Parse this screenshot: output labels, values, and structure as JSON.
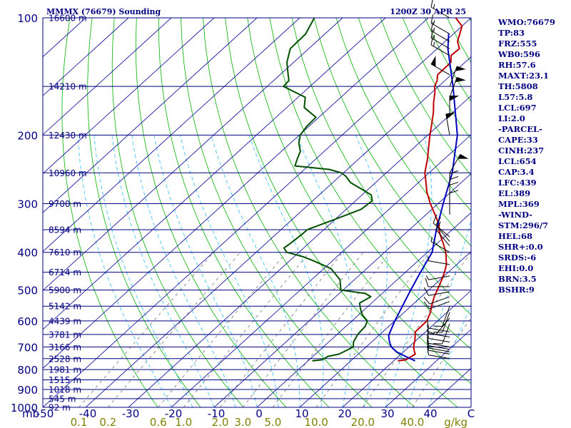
{
  "header": {
    "title": "MMMX (76679) Sounding",
    "time": "1200Z 30 APR 25"
  },
  "colors": {
    "axis": "#000080",
    "dry_adiabat": "#00b000",
    "moist_adiabat": "#40c0ff",
    "mixing_ratio": "#808080",
    "temperature": "#c00000",
    "dewpoint": "#005000",
    "parcel": "#0000c0",
    "mixing_ratio_labels": "#808000"
  },
  "indices": [
    "WMO:76679",
    "TP:83",
    "FRZ:555",
    "WB0:596",
    "RH:57.6",
    "MAXT:23.1",
    "TH:5808",
    "L57:5.8",
    "LCL:697",
    "LI:2.0",
    "-PARCEL-",
    "CAPE:33",
    "CINH:237",
    "LCL:654",
    "CAP:3.4",
    "LFC:439",
    "EL:389",
    "MPL:369",
    "-WIND-",
    "STM:296/7",
    "HEL:68",
    "SHR+:0.0",
    "SRDS:-6",
    "EHI:0.0",
    "BRN:3.5",
    "BSHR:9"
  ],
  "chart_data": {
    "type": "skew-t log-p sounding",
    "x_unit": "C",
    "y_unit": "mb",
    "xlim": [
      -50,
      50
    ],
    "ylim": [
      1000,
      100
    ],
    "isobars": [
      100,
      200,
      300,
      400,
      500,
      600,
      700,
      800,
      900,
      1000
    ],
    "isobar_labels": [
      "100",
      "200",
      "300",
      "400",
      "500",
      "600",
      "700",
      "800",
      "900",
      "1000"
    ],
    "pressure_axis_label": "mb",
    "temperature_ticks": [
      -50,
      -40,
      -30,
      -20,
      -10,
      0,
      10,
      20,
      30,
      40
    ],
    "temperature_tick_labels": [
      "-50",
      "-40",
      "-30",
      "-20",
      "-10",
      "0",
      "10",
      "20",
      "30",
      "40"
    ],
    "temperature_axis_label": "C",
    "height_levels": [
      {
        "p": 100,
        "label": "16600 m"
      },
      {
        "p": 150,
        "label": "14210 m"
      },
      {
        "p": 200,
        "label": "12430 m"
      },
      {
        "p": 250,
        "label": "10960 m"
      },
      {
        "p": 300,
        "label": "9700 m"
      },
      {
        "p": 350,
        "label": "8594 m"
      },
      {
        "p": 400,
        "label": "7610 m"
      },
      {
        "p": 450,
        "label": "6714 m"
      },
      {
        "p": 500,
        "label": "5900 m"
      },
      {
        "p": 550,
        "label": "5142 m"
      },
      {
        "p": 600,
        "label": "4439 m"
      },
      {
        "p": 650,
        "label": "3781 m"
      },
      {
        "p": 700,
        "label": "3166 m"
      },
      {
        "p": 750,
        "label": "2528 m"
      },
      {
        "p": 800,
        "label": "1981 m"
      },
      {
        "p": 850,
        "label": "1515 m"
      },
      {
        "p": 900,
        "label": "1018 m"
      },
      {
        "p": 950,
        "label": "545 m"
      },
      {
        "p": 1000,
        "label": "92 m"
      }
    ],
    "mixing_ratio_lines": [
      0.1,
      0.2,
      0.6,
      1.0,
      2.0,
      3.0,
      5.0,
      10.0,
      20.0,
      40.0
    ],
    "mixing_ratio_labels": [
      "0.1",
      "0.2",
      "0.6",
      "1.0",
      "2.0",
      "3.0",
      "5.0",
      "10.0",
      "20.0",
      "40.0"
    ],
    "mixing_ratio_unit": "g/kg",
    "temperature": {
      "p": [
        760,
        755,
        740,
        730,
        720,
        700,
        670,
        640,
        600,
        570,
        550,
        520,
        500,
        470,
        450,
        430,
        400,
        380,
        360,
        350,
        340,
        320,
        300,
        280,
        260,
        250,
        230,
        210,
        200,
        185,
        175,
        165,
        155,
        150,
        145,
        140,
        130,
        125,
        120,
        115,
        110,
        105,
        100
      ],
      "t": [
        21,
        22.6,
        23,
        23.3,
        22.5,
        21.1,
        19.5,
        17.6,
        17.5,
        16.1,
        14.8,
        13,
        12,
        10.4,
        9.1,
        7.6,
        4.3,
        1.5,
        -1.6,
        -3.1,
        -4.3,
        -7.9,
        -11.8,
        -15.6,
        -19.1,
        -21,
        -24,
        -27.6,
        -29.5,
        -32.4,
        -34.5,
        -37,
        -39.4,
        -40.9,
        -41.8,
        -43.2,
        -43.3,
        -45,
        -44.8,
        -47.1,
        -48.5,
        -50,
        -53.6
      ]
    },
    "dewpoint": {
      "p": [
        760,
        755,
        740,
        730,
        720,
        700,
        680,
        650,
        620,
        600,
        580,
        560,
        540,
        520,
        510,
        500,
        470,
        440,
        420,
        410,
        400,
        390,
        380,
        370,
        360,
        350,
        330,
        310,
        295,
        285,
        275,
        265,
        255,
        250,
        245,
        240,
        230,
        220,
        210,
        200,
        190,
        180,
        170,
        160,
        150,
        145,
        140,
        130,
        120,
        110,
        100
      ],
      "td": [
        1,
        3,
        3.5,
        5.5,
        6,
        7,
        5.8,
        4.8,
        4.5,
        3.6,
        1,
        -1,
        -2.8,
        -1.8,
        -4,
        -10.5,
        -13.4,
        -18.4,
        -24.6,
        -28.1,
        -32.8,
        -34.6,
        -34.3,
        -34.1,
        -33.9,
        -33.9,
        -30.2,
        -26.5,
        -26.1,
        -27.8,
        -31.7,
        -35.8,
        -38.6,
        -40.5,
        -44.2,
        -53.1,
        -54.4,
        -55.6,
        -58,
        -59.8,
        -60.5,
        -60.7,
        -65.9,
        -68.3,
        -76.2,
        -76.4,
        -78.1,
        -81.6,
        -84.3,
        -84.5,
        -86.6
      ]
    },
    "parcel": {
      "p": [
        760,
        740,
        720,
        700,
        680,
        654,
        600,
        550,
        500,
        450,
        400,
        350,
        300,
        250,
        200,
        150,
        120,
        110
      ],
      "t": [
        25,
        21.6,
        18.3,
        15.9,
        14.2,
        12.3,
        10,
        8,
        5.8,
        3.5,
        1.1,
        -3.7,
        -8.8,
        -14.6,
        -23.1,
        -36.6,
        -47.5,
        -51.1
      ]
    },
    "wind_barbs": [
      {
        "p": 750,
        "dir": 280,
        "spd": 10
      },
      {
        "p": 730,
        "dir": 280,
        "spd": 10
      },
      {
        "p": 720,
        "dir": 280,
        "spd": 10
      },
      {
        "p": 710,
        "dir": 280,
        "spd": 10
      },
      {
        "p": 700,
        "dir": 280,
        "spd": 10
      },
      {
        "p": 680,
        "dir": 280,
        "spd": 10
      },
      {
        "p": 660,
        "dir": 280,
        "spd": 10
      },
      {
        "p": 640,
        "dir": 280,
        "spd": 10
      },
      {
        "p": 610,
        "dir": 200,
        "spd": 10
      },
      {
        "p": 590,
        "dir": 220,
        "spd": 10
      },
      {
        "p": 570,
        "dir": 200,
        "spd": 10
      },
      {
        "p": 550,
        "dir": 200,
        "spd": 10
      },
      {
        "p": 535,
        "dir": 250,
        "spd": 10
      },
      {
        "p": 520,
        "dir": 250,
        "spd": 10
      },
      {
        "p": 505,
        "dir": 260,
        "spd": 10
      },
      {
        "p": 490,
        "dir": 270,
        "spd": 10
      },
      {
        "p": 460,
        "dir": 260,
        "spd": 5
      },
      {
        "p": 430,
        "dir": 280,
        "spd": 5
      },
      {
        "p": 400,
        "dir": 300,
        "spd": 5
      },
      {
        "p": 385,
        "dir": 320,
        "spd": 10
      },
      {
        "p": 375,
        "dir": 320,
        "spd": 10
      },
      {
        "p": 365,
        "dir": 310,
        "spd": 10
      },
      {
        "p": 320,
        "dir": 360,
        "spd": 10
      },
      {
        "p": 305,
        "dir": 360,
        "spd": 10
      },
      {
        "p": 295,
        "dir": 360,
        "spd": 10
      },
      {
        "p": 285,
        "dir": 360,
        "spd": 10
      },
      {
        "p": 250,
        "dir": 30,
        "spd": 50
      },
      {
        "p": 200,
        "dir": 350,
        "spd": 50
      },
      {
        "p": 180,
        "dir": 360,
        "spd": 50
      },
      {
        "p": 160,
        "dir": 20,
        "spd": 50
      },
      {
        "p": 150,
        "dir": 20,
        "spd": 50
      },
      {
        "p": 140,
        "dir": 300,
        "spd": 50
      },
      {
        "p": 125,
        "dir": 300,
        "spd": 15
      },
      {
        "p": 120,
        "dir": 300,
        "spd": 15
      },
      {
        "p": 115,
        "dir": 300,
        "spd": 15
      },
      {
        "p": 110,
        "dir": 300,
        "spd": 15
      },
      {
        "p": 100,
        "dir": 300,
        "spd": 15
      }
    ]
  }
}
